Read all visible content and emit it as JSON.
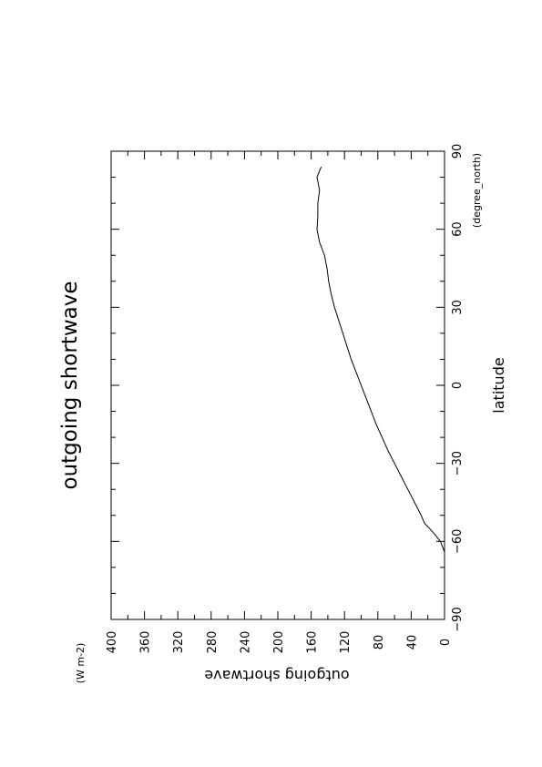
{
  "chart_data": {
    "type": "line",
    "title": "outgoing shortwave",
    "xlabel": "latitude",
    "xunits": "(degree_north)",
    "ylabel": "outgoing shortwave",
    "yunits": "(W m-2)",
    "xlim": [
      -90,
      90
    ],
    "ylim": [
      0,
      400
    ],
    "x_ticks": [
      -90,
      -60,
      -30,
      0,
      30,
      60,
      90
    ],
    "y_ticks": [
      0,
      40,
      80,
      120,
      160,
      200,
      240,
      280,
      320,
      360,
      400
    ],
    "x_tick_labels": [
      "−90",
      "−60",
      "−30",
      "0",
      "30",
      "60",
      "90"
    ],
    "y_tick_labels": [
      "0",
      "40",
      "80",
      "120",
      "160",
      "200",
      "240",
      "280",
      "320",
      "360",
      "400"
    ],
    "orientation": "page rotated 90° counter-clockwise",
    "grid": false,
    "series": [
      {
        "x": [
          -64,
          -60,
          -58,
          -55,
          -53,
          -50,
          -45,
          -40,
          -35,
          -30,
          -25,
          -20,
          -15,
          -10,
          -5,
          0,
          5,
          10,
          15,
          20,
          25,
          30,
          35,
          40,
          45,
          50,
          55,
          60,
          65,
          70,
          75,
          80,
          84
        ],
        "values": [
          0,
          5,
          10,
          18,
          24,
          28,
          36,
          44,
          52,
          60,
          68,
          75,
          82,
          88,
          94,
          100,
          106,
          112,
          117,
          122,
          127,
          132,
          136,
          139,
          141,
          144,
          150,
          153,
          152,
          152,
          150,
          153,
          148
        ]
      }
    ]
  }
}
